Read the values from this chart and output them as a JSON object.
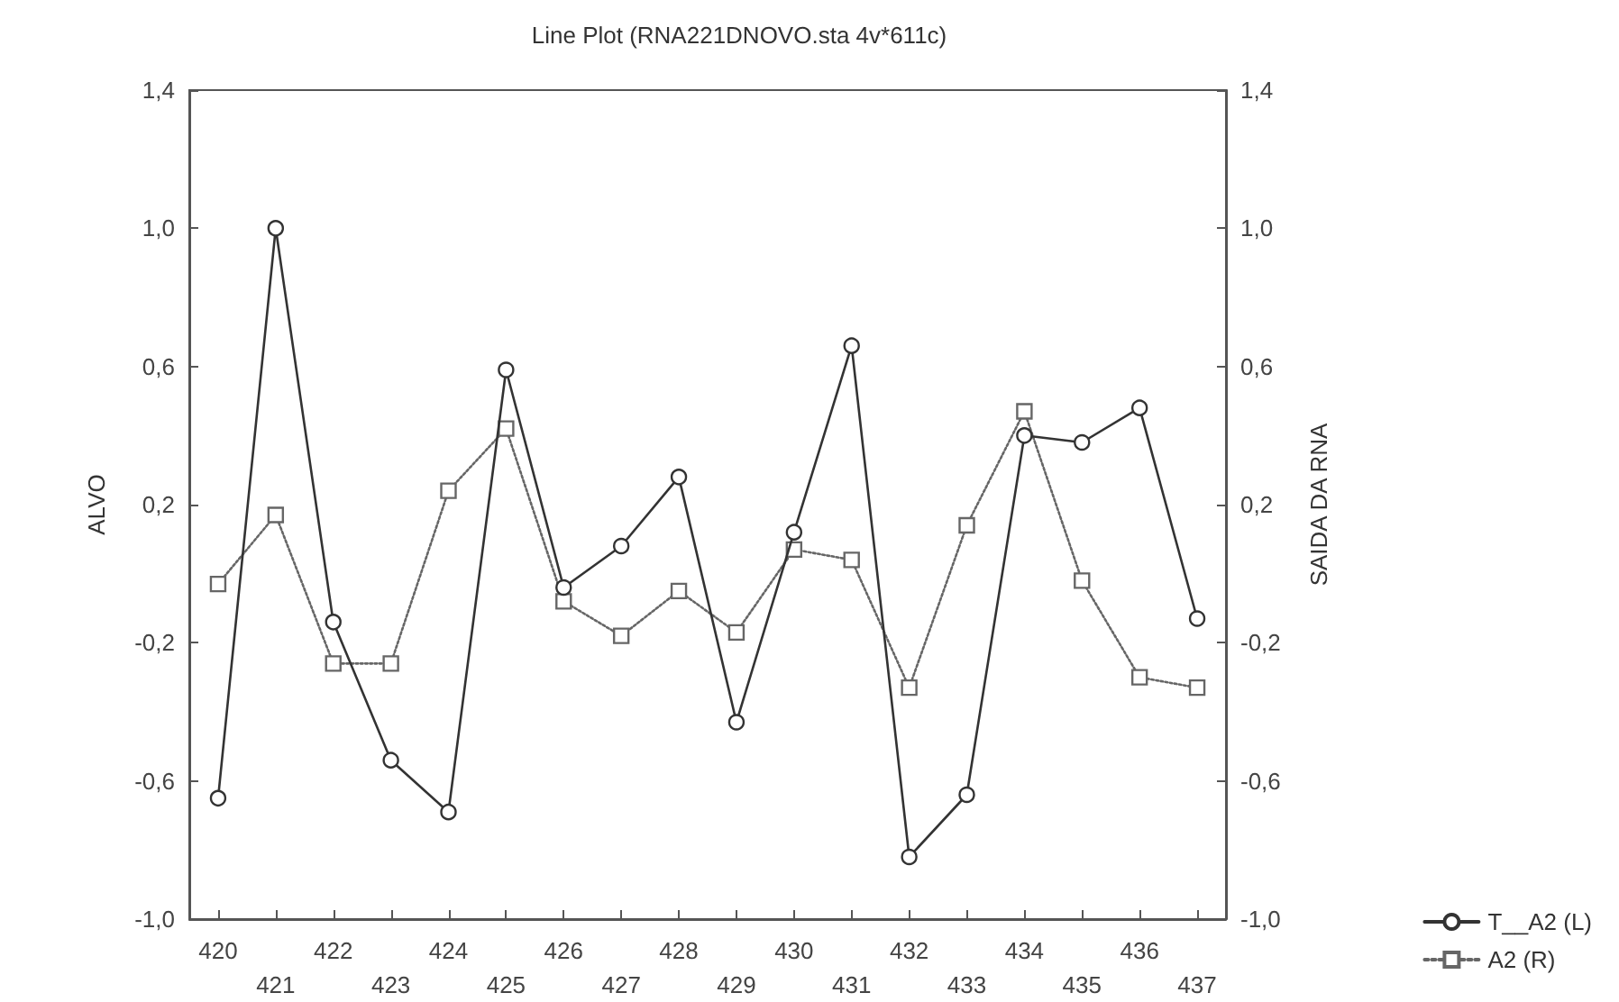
{
  "chart_data": {
    "type": "line",
    "title": "Line Plot (RNA221DNOVO.sta 4v*611c)",
    "ylabel": "ALVO",
    "y2label": "SAIDA DA RNA",
    "categories": [
      "420",
      "421",
      "422",
      "423",
      "424",
      "425",
      "426",
      "427",
      "428",
      "429",
      "430",
      "431",
      "432",
      "433",
      "434",
      "435",
      "436",
      "437"
    ],
    "series": [
      {
        "name": "T__A2 (L)",
        "color": "#333333",
        "marker": "circle",
        "line_style": "solid",
        "values": [
          -0.65,
          1.0,
          -0.14,
          -0.54,
          -0.69,
          0.59,
          -0.04,
          0.08,
          0.28,
          -0.43,
          0.12,
          0.66,
          -0.82,
          -0.64,
          0.4,
          0.38,
          0.48,
          -0.13
        ]
      },
      {
        "name": "A2 (R)",
        "color": "#666666",
        "marker": "square",
        "line_style": "dotted",
        "axis": "y2",
        "values": [
          -0.03,
          0.17,
          -0.26,
          -0.26,
          0.24,
          0.42,
          -0.08,
          -0.18,
          -0.05,
          -0.17,
          0.07,
          0.04,
          -0.33,
          0.14,
          0.47,
          -0.02,
          -0.3,
          -0.33
        ]
      }
    ],
    "ylim": [
      -1.0,
      1.4
    ],
    "yticks": [
      {
        "value": -1.0,
        "label": "-1,0"
      },
      {
        "value": -0.6,
        "label": "-0,6"
      },
      {
        "value": -0.2,
        "label": "-0,2"
      },
      {
        "value": 0.2,
        "label": "0,2"
      },
      {
        "value": 0.6,
        "label": "0,6"
      },
      {
        "value": 1.0,
        "label": "1,0"
      },
      {
        "value": 1.4,
        "label": "1,4"
      }
    ],
    "y2lim": [
      -1.0,
      1.4
    ],
    "y2ticks": [
      {
        "value": -1.0,
        "label": "-1,0"
      },
      {
        "value": -0.6,
        "label": "-0,6"
      },
      {
        "value": -0.2,
        "label": "-0,2"
      },
      {
        "value": 0.2,
        "label": "0,2"
      },
      {
        "value": 0.6,
        "label": "0,6"
      },
      {
        "value": 1.0,
        "label": "1,0"
      },
      {
        "value": 1.4,
        "label": "1,4"
      }
    ],
    "grid": false,
    "legend": "bottom right"
  }
}
